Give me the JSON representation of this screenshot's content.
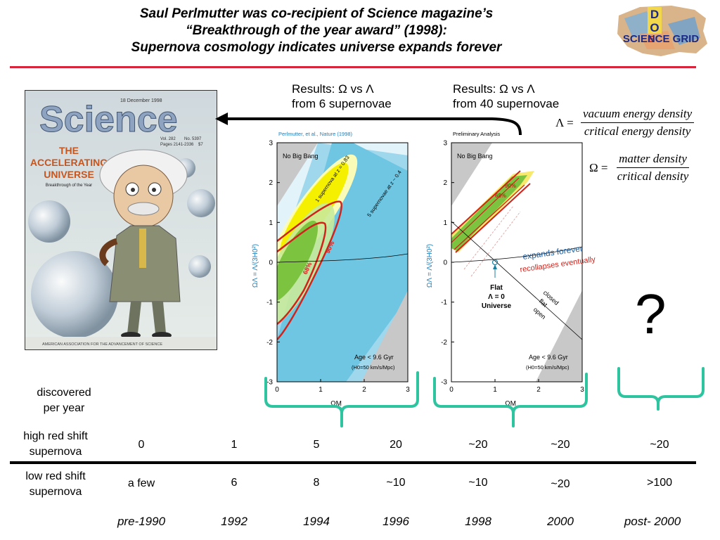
{
  "title": {
    "line1": "Saul Perlmutter  was co-recipient of  Science magazine’s",
    "line2": "“Breakthrough of the year award” (1998):",
    "line3": "Supernova cosmology indicates universe expands forever"
  },
  "logo": {
    "d": "D",
    "o": "O",
    "e": "E",
    "text": "SCIENCE GRID"
  },
  "cover": {
    "masthead": "Science",
    "date": "18 December 1998",
    "vol": "Vol. 282",
    "no": "No. 5397",
    "pages": "Pages 2141-2336",
    "price": "$7",
    "headline1": "THE",
    "headline2": "ACCELERATING",
    "headline3": "UNIVERSE",
    "subhead": "Breakthrough of the Year",
    "footer": "AMERICAN ASSOCIATION FOR THE ADVANCEMENT OF SCIENCE"
  },
  "results": [
    {
      "line1": "Results: Ω vs Λ",
      "line2": "from 6 supernovae"
    },
    {
      "line1": "Results: Ω vs Λ",
      "line2": "from 40 supernovae"
    }
  ],
  "formulas": {
    "lambda_lhs": "Λ =",
    "lambda_num": "vacuum energy density",
    "lambda_den": "critical energy density",
    "omega_lhs": "Ω =",
    "omega_num": "matter density",
    "omega_den": "critical density"
  },
  "question_mark": "?",
  "chart_data": [
    {
      "type": "contour",
      "header": "Perlmutter, et al., Nature (1998)",
      "xlabel": "ΩM",
      "ylabel": "ΩΛ = Λ/(3H0²)",
      "xlim": [
        0,
        3
      ],
      "ylim": [
        -3,
        3
      ],
      "x_ticks": [
        "0",
        "1",
        "2",
        "3"
      ],
      "y_ticks": [
        "3",
        "2",
        "1",
        "0",
        "-1",
        "-2",
        "-3"
      ],
      "region_labels": [
        "No Big Bang",
        "Age < 9.6 Gyr",
        "(H0=50 km/s/Mpc)"
      ],
      "annotations": [
        "1 supernova at z = 0.83",
        "5 supernovae at z ~ 0.4",
        "68%",
        "90%"
      ]
    },
    {
      "type": "contour",
      "header": "Preliminary Analysis",
      "xlabel": "ΩM",
      "ylabel": "ΩΛ = Λ/(3H0²)",
      "xlim": [
        0,
        3
      ],
      "ylim": [
        -3,
        3
      ],
      "x_ticks": [
        "0",
        "1",
        "2",
        "3"
      ],
      "y_ticks": [
        "3",
        "2",
        "1",
        "0",
        "-1",
        "-2",
        "-3"
      ],
      "region_labels": [
        "No Big Bang",
        "Age < 9.6 Gyr",
        "(H0=50 km/s/Mpc)"
      ],
      "annotations": [
        "68%",
        "90%",
        "expands forever",
        "recollapses eventually",
        "Flat",
        "Λ = 0",
        "Universe",
        "closed",
        "flat",
        "open"
      ]
    }
  ],
  "table": {
    "row_labels": {
      "discovered": [
        "discovered",
        "per year"
      ],
      "high": [
        "high red shift",
        "supernova"
      ],
      "low": [
        "low red shift",
        "supernova"
      ]
    },
    "high_red_shift": [
      "0",
      "1",
      "5",
      "20",
      "~20",
      "~20",
      "~20"
    ],
    "low_red_shift": [
      "a few",
      "6",
      "8",
      "~10",
      "~10",
      "~20",
      ">100"
    ],
    "years": [
      "pre-1990",
      "1992",
      "1994",
      "1996",
      "1998",
      "2000",
      "post- 2000"
    ]
  },
  "colors": {
    "title_rule": "#d9253c",
    "bracket": "#2ec4a0",
    "contour_red": "#d0231b",
    "contour_yellow": "#f4f000",
    "contour_green": "#7cc440",
    "contour_blue": "#6fc6e2",
    "grey_region": "#c8c8c8"
  }
}
